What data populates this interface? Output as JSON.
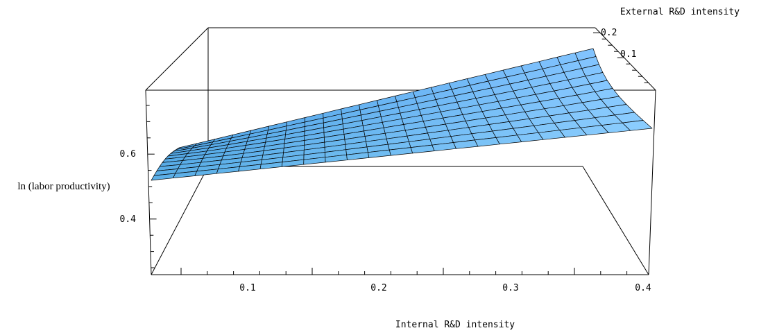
{
  "chart_data": {
    "type": "surface",
    "title": "",
    "xlabel": "Internal R&D intensity",
    "ylabel": "External R&D intensity",
    "zlabel": "ln (labor productivity)",
    "x_ticks": [
      "0.1",
      "0.2",
      "0.3",
      "0.4"
    ],
    "y_ticks": [
      "0.1",
      "0.2"
    ],
    "z_ticks": [
      "0.4",
      "0.6"
    ],
    "x_range": [
      0.03,
      0.4
    ],
    "y_range": [
      0.0,
      0.22
    ],
    "z_range": [
      0.22,
      0.8
    ],
    "grid": false,
    "surface_color": "#7cc0ff",
    "surface_samples": {
      "x": [
        0.03,
        0.4
      ],
      "y": [
        0.0,
        0.22
      ],
      "z": [
        [
          0.52,
          0.67
        ],
        [
          0.6,
          0.78
        ]
      ]
    }
  }
}
